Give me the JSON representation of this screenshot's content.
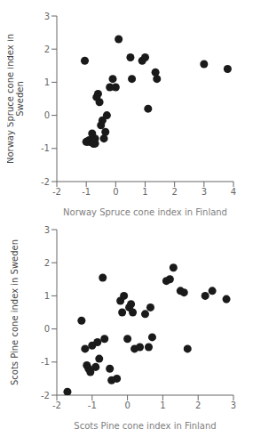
{
  "chart_data": [
    {
      "type": "scatter",
      "x_label": "Norway Spruce cone index in Finland",
      "y_label": "Norway Spruce cone index in\nSweden",
      "xlim": [
        -2,
        4
      ],
      "ylim": [
        -2,
        3
      ],
      "xticks": [
        -2,
        -1,
        0,
        1,
        2,
        3,
        4
      ],
      "yticks": [
        -2,
        -1,
        0,
        1,
        2,
        3
      ],
      "x": [
        -1.05,
        -1.0,
        -0.95,
        -0.9,
        -0.85,
        -0.85,
        -0.8,
        -0.8,
        -0.75,
        -0.75,
        -0.75,
        -0.7,
        -0.7,
        -0.65,
        -0.6,
        -0.55,
        -0.5,
        -0.45,
        -0.4,
        -0.35,
        -0.3,
        -0.2,
        -0.1,
        0.0,
        0.1,
        0.5,
        0.55,
        0.9,
        1.0,
        1.1,
        1.35,
        1.4,
        3.0,
        3.8
      ],
      "values": [
        1.65,
        -0.8,
        -0.8,
        -0.75,
        -0.8,
        -0.8,
        -0.75,
        -0.55,
        -0.85,
        -0.85,
        -0.85,
        -0.85,
        -0.7,
        0.55,
        0.65,
        0.4,
        -0.3,
        -0.15,
        -0.7,
        -0.5,
        0.0,
        0.85,
        1.1,
        0.85,
        2.3,
        1.75,
        1.1,
        1.65,
        1.75,
        0.2,
        1.3,
        1.1,
        1.55,
        1.4
      ],
      "color": "#1a1a1a",
      "grid": false
    },
    {
      "type": "scatter",
      "x_label": "Scots Pine cone index in Finland",
      "y_label": "Scots Pine cone index in Sweden",
      "xlim": [
        -2,
        3
      ],
      "ylim": [
        -2,
        3
      ],
      "xticks": [
        -2,
        -1,
        0,
        1,
        2,
        3
      ],
      "yticks": [
        -2,
        -1,
        0,
        1,
        2,
        3
      ],
      "x": [
        -1.7,
        -1.3,
        -1.2,
        -1.15,
        -1.1,
        -1.05,
        -1.0,
        -0.9,
        -0.85,
        -0.8,
        -0.7,
        -0.65,
        -0.5,
        -0.45,
        -0.3,
        -0.2,
        -0.15,
        -0.1,
        0.0,
        0.05,
        0.1,
        0.15,
        0.2,
        0.35,
        0.5,
        0.6,
        0.65,
        0.7,
        1.1,
        1.2,
        1.3,
        1.5,
        1.6,
        1.7,
        2.2,
        2.4,
        2.8
      ],
      "values": [
        -1.9,
        0.25,
        -0.6,
        -1.1,
        -1.2,
        -1.3,
        -0.5,
        -1.15,
        -0.4,
        -0.9,
        1.55,
        -0.3,
        -1.2,
        -1.55,
        -1.5,
        0.85,
        0.5,
        1.0,
        -0.3,
        0.65,
        0.75,
        0.5,
        -0.6,
        -0.55,
        0.45,
        -0.55,
        0.65,
        -0.25,
        1.45,
        1.5,
        1.85,
        1.15,
        1.1,
        -0.6,
        1.0,
        1.15,
        0.9
      ],
      "color": "#1a1a1a",
      "grid": false
    }
  ]
}
